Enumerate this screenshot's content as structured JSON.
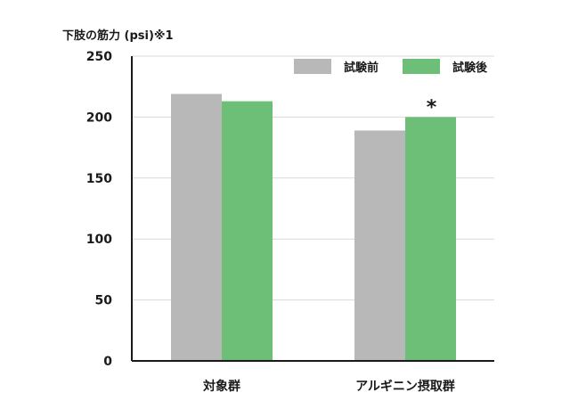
{
  "chart_data": {
    "type": "bar",
    "title": "",
    "ylabel": "下肢の筋力 (psi)※1",
    "xlabel": "",
    "categories": [
      "対象群",
      "アルギニン摂取群"
    ],
    "series": [
      {
        "name": "試験前",
        "values": [
          219,
          189
        ],
        "color": "#b8b8b8"
      },
      {
        "name": "試験後",
        "values": [
          213,
          200
        ],
        "color": "#6dbf78"
      }
    ],
    "ylim": [
      0,
      250
    ],
    "yticks": [
      "0",
      "50",
      "100",
      "150",
      "200",
      "250"
    ],
    "grid": true,
    "legend": "top-right",
    "annotations": [
      {
        "text": "*",
        "category": 1,
        "series": 1
      }
    ]
  }
}
